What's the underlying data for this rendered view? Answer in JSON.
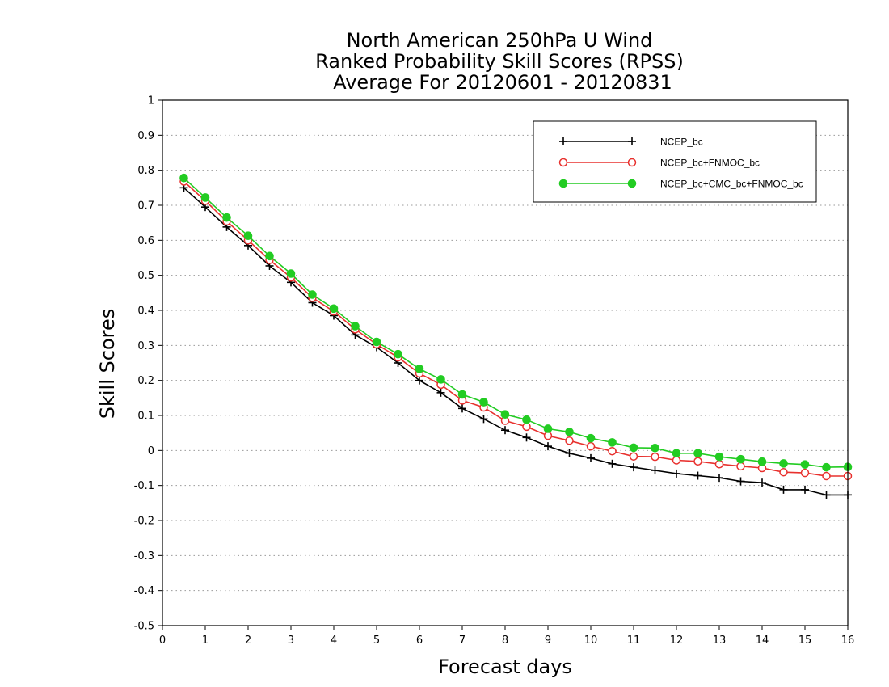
{
  "chart_data": {
    "type": "line",
    "title_lines": [
      "North American 250hPa U Wind",
      "Ranked Probability Skill Scores (RPSS)",
      "Average For 20120601 - 20120831"
    ],
    "xlabel": "Forecast days",
    "ylabel": "Skill Scores",
    "xlim": [
      0,
      16
    ],
    "ylim": [
      -0.5,
      1
    ],
    "x_ticks": [
      "0",
      "1",
      "2",
      "3",
      "4",
      "5",
      "6",
      "7",
      "8",
      "9",
      "10",
      "11",
      "12",
      "13",
      "14",
      "15",
      "16"
    ],
    "y_ticks": [
      "1",
      "0.9",
      "0.8",
      "0.7",
      "0.6",
      "0.5",
      "0.4",
      "0.3",
      "0.2",
      "0.1",
      "0",
      "-0.1",
      "-0.2",
      "-0.3",
      "-0.4",
      "-0.5"
    ],
    "y_tick_values": [
      1,
      0.9,
      0.8,
      0.7,
      0.6,
      0.5,
      0.4,
      0.3,
      0.2,
      0.1,
      0,
      -0.1,
      -0.2,
      -0.3,
      -0.4,
      -0.5
    ],
    "grid": "horizontal dotted",
    "legend_position": "top-right",
    "x": [
      0.5,
      1,
      1.5,
      2,
      2.5,
      3,
      3.5,
      4,
      4.5,
      5,
      5.5,
      6,
      6.5,
      7,
      7.5,
      8,
      8.5,
      9,
      9.5,
      10,
      10.5,
      11,
      11.5,
      12,
      12.5,
      13,
      13.5,
      14,
      14.5,
      15,
      15.5,
      16
    ],
    "series": [
      {
        "name": "NCEP_bc",
        "color": "#000000",
        "marker": "plus",
        "values": [
          0.75,
          0.695,
          0.638,
          0.585,
          0.527,
          0.48,
          0.422,
          0.385,
          0.33,
          0.295,
          0.25,
          0.2,
          0.165,
          0.12,
          0.09,
          0.058,
          0.037,
          0.012,
          -0.008,
          -0.022,
          -0.038,
          -0.048,
          -0.057,
          -0.066,
          -0.072,
          -0.078,
          -0.088,
          -0.092,
          -0.112,
          -0.112,
          -0.127,
          -0.127
        ]
      },
      {
        "name": "NCEP_bc+FNMOC_bc",
        "color": "#e8312e",
        "marker": "open-circle",
        "values": [
          0.768,
          0.713,
          0.654,
          0.6,
          0.544,
          0.494,
          0.436,
          0.397,
          0.346,
          0.303,
          0.266,
          0.22,
          0.188,
          0.143,
          0.123,
          0.085,
          0.068,
          0.042,
          0.028,
          0.012,
          -0.002,
          -0.017,
          -0.018,
          -0.028,
          -0.031,
          -0.039,
          -0.045,
          -0.05,
          -0.062,
          -0.064,
          -0.073,
          -0.073
        ]
      },
      {
        "name": "NCEP_bc+CMC_bc+FNMOC_bc",
        "color": "#22cc22",
        "marker": "filled-circle",
        "values": [
          0.778,
          0.722,
          0.665,
          0.613,
          0.555,
          0.505,
          0.445,
          0.405,
          0.355,
          0.31,
          0.275,
          0.233,
          0.203,
          0.16,
          0.138,
          0.103,
          0.088,
          0.062,
          0.053,
          0.035,
          0.023,
          0.008,
          0.007,
          -0.008,
          -0.008,
          -0.018,
          -0.025,
          -0.032,
          -0.037,
          -0.04,
          -0.048,
          -0.047
        ]
      }
    ]
  }
}
